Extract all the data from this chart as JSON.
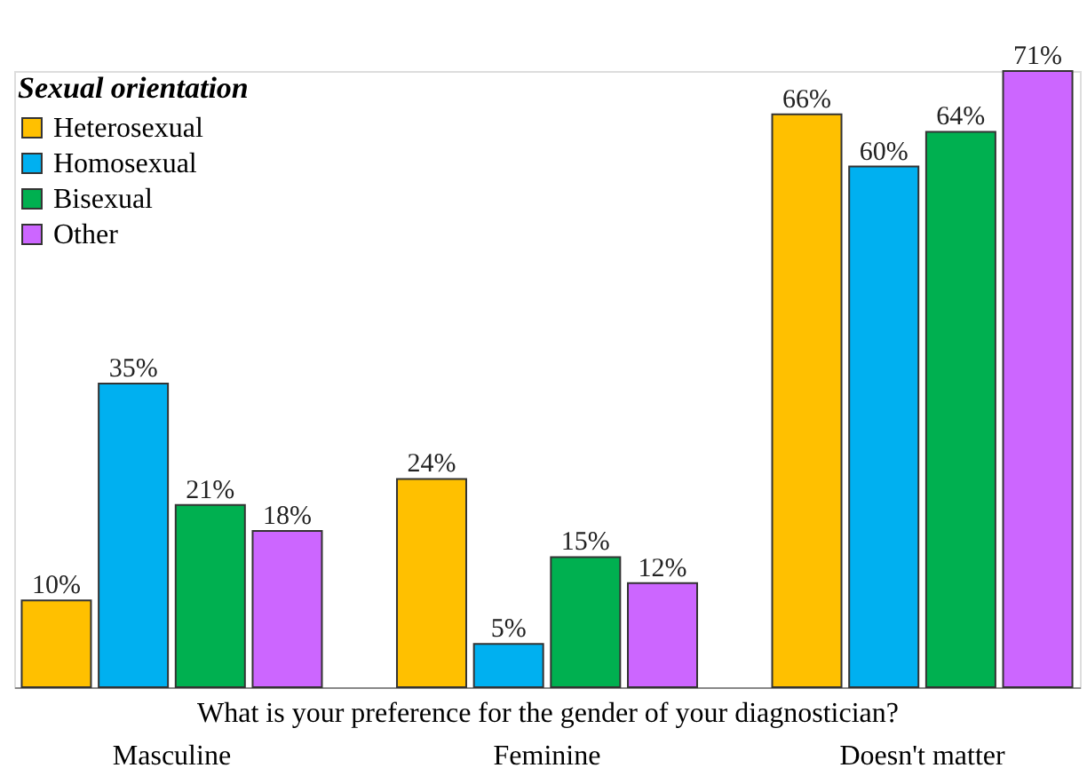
{
  "chart_data": {
    "type": "bar",
    "xlabel": "What is your preference for the gender of your diagnostician?",
    "categories": [
      "Masculine",
      "Feminine",
      "Doesn't matter"
    ],
    "legend_title": "Sexual orientation",
    "series": [
      {
        "name": "Heterosexual",
        "color": "#ffc000",
        "values": [
          10,
          24,
          66
        ],
        "value_labels": [
          "10%",
          "24%",
          "66%"
        ]
      },
      {
        "name": "Homosexual",
        "color": "#00b0f0",
        "values": [
          35,
          5,
          60
        ],
        "value_labels": [
          "35%",
          "5%",
          "60%"
        ]
      },
      {
        "name": "Bisexual",
        "color": "#00b050",
        "values": [
          21,
          15,
          64
        ],
        "value_labels": [
          "21%",
          "15%",
          "64%"
        ]
      },
      {
        "name": "Other",
        "color": "#cc66ff",
        "values": [
          18,
          12,
          71
        ],
        "value_labels": [
          "18%",
          "12%",
          "71%"
        ]
      }
    ],
    "tick_labels": "x",
    "grid": false,
    "legend": "top left"
  }
}
